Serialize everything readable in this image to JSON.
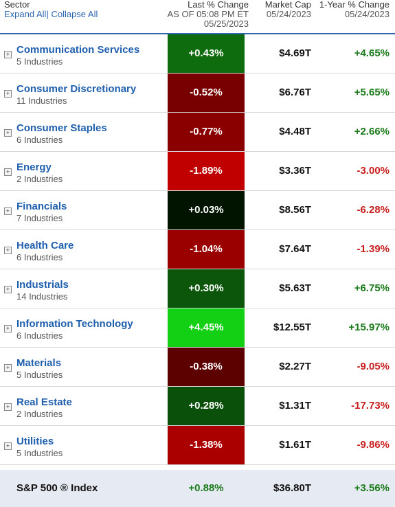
{
  "header": {
    "sector_label": "Sector",
    "expand_all": "Expand All",
    "separator": "|",
    "collapse_all": "Collapse All",
    "change_label": "Last % Change",
    "change_sub1": "AS OF 05:08 PM ET",
    "change_sub2": "05/25/2023",
    "cap_label": "Market Cap",
    "cap_sub": "05/24/2023",
    "year_label": "1-Year % Change",
    "year_sub": "05/24/2023"
  },
  "expand_icon": "plus-box-icon",
  "sectors": [
    {
      "name": "Communication Services",
      "industries": "5 Industries",
      "change": "+0.43%",
      "change_color": "#0e6b0e",
      "market_cap": "$4.69T",
      "year_change": "+4.65%",
      "year_dir": "pos"
    },
    {
      "name": "Consumer Discretionary",
      "industries": "11 Industries",
      "change": "-0.52%",
      "change_color": "#780000",
      "market_cap": "$6.76T",
      "year_change": "+5.65%",
      "year_dir": "pos"
    },
    {
      "name": "Consumer Staples",
      "industries": "6 Industries",
      "change": "-0.77%",
      "change_color": "#8a0000",
      "market_cap": "$4.48T",
      "year_change": "+2.66%",
      "year_dir": "pos"
    },
    {
      "name": "Energy",
      "industries": "2 Industries",
      "change": "-1.89%",
      "change_color": "#c00000",
      "market_cap": "$3.36T",
      "year_change": "-3.00%",
      "year_dir": "neg"
    },
    {
      "name": "Financials",
      "industries": "7 Industries",
      "change": "+0.03%",
      "change_color": "#001400",
      "market_cap": "$8.56T",
      "year_change": "-6.28%",
      "year_dir": "neg"
    },
    {
      "name": "Health Care",
      "industries": "6 Industries",
      "change": "-1.04%",
      "change_color": "#9a0000",
      "market_cap": "$7.64T",
      "year_change": "-1.39%",
      "year_dir": "neg"
    },
    {
      "name": "Industrials",
      "industries": "14 Industries",
      "change": "+0.30%",
      "change_color": "#0b560b",
      "market_cap": "$5.63T",
      "year_change": "+6.75%",
      "year_dir": "pos"
    },
    {
      "name": "Information Technology",
      "industries": "6 Industries",
      "change": "+4.45%",
      "change_color": "#14d014",
      "market_cap": "$12.55T",
      "year_change": "+15.97%",
      "year_dir": "pos"
    },
    {
      "name": "Materials",
      "industries": "5 Industries",
      "change": "-0.38%",
      "change_color": "#5c0000",
      "market_cap": "$2.27T",
      "year_change": "-9.05%",
      "year_dir": "neg"
    },
    {
      "name": "Real Estate",
      "industries": "2 Industries",
      "change": "+0.28%",
      "change_color": "#0a500a",
      "market_cap": "$1.31T",
      "year_change": "-17.73%",
      "year_dir": "neg"
    },
    {
      "name": "Utilities",
      "industries": "5 Industries",
      "change": "-1.38%",
      "change_color": "#aa0000",
      "market_cap": "$1.61T",
      "year_change": "-9.86%",
      "year_dir": "neg"
    }
  ],
  "footer": {
    "name": "S&P 500 ® Index",
    "change": "+0.88%",
    "market_cap": "$36.80T",
    "year_change": "+3.56%"
  }
}
